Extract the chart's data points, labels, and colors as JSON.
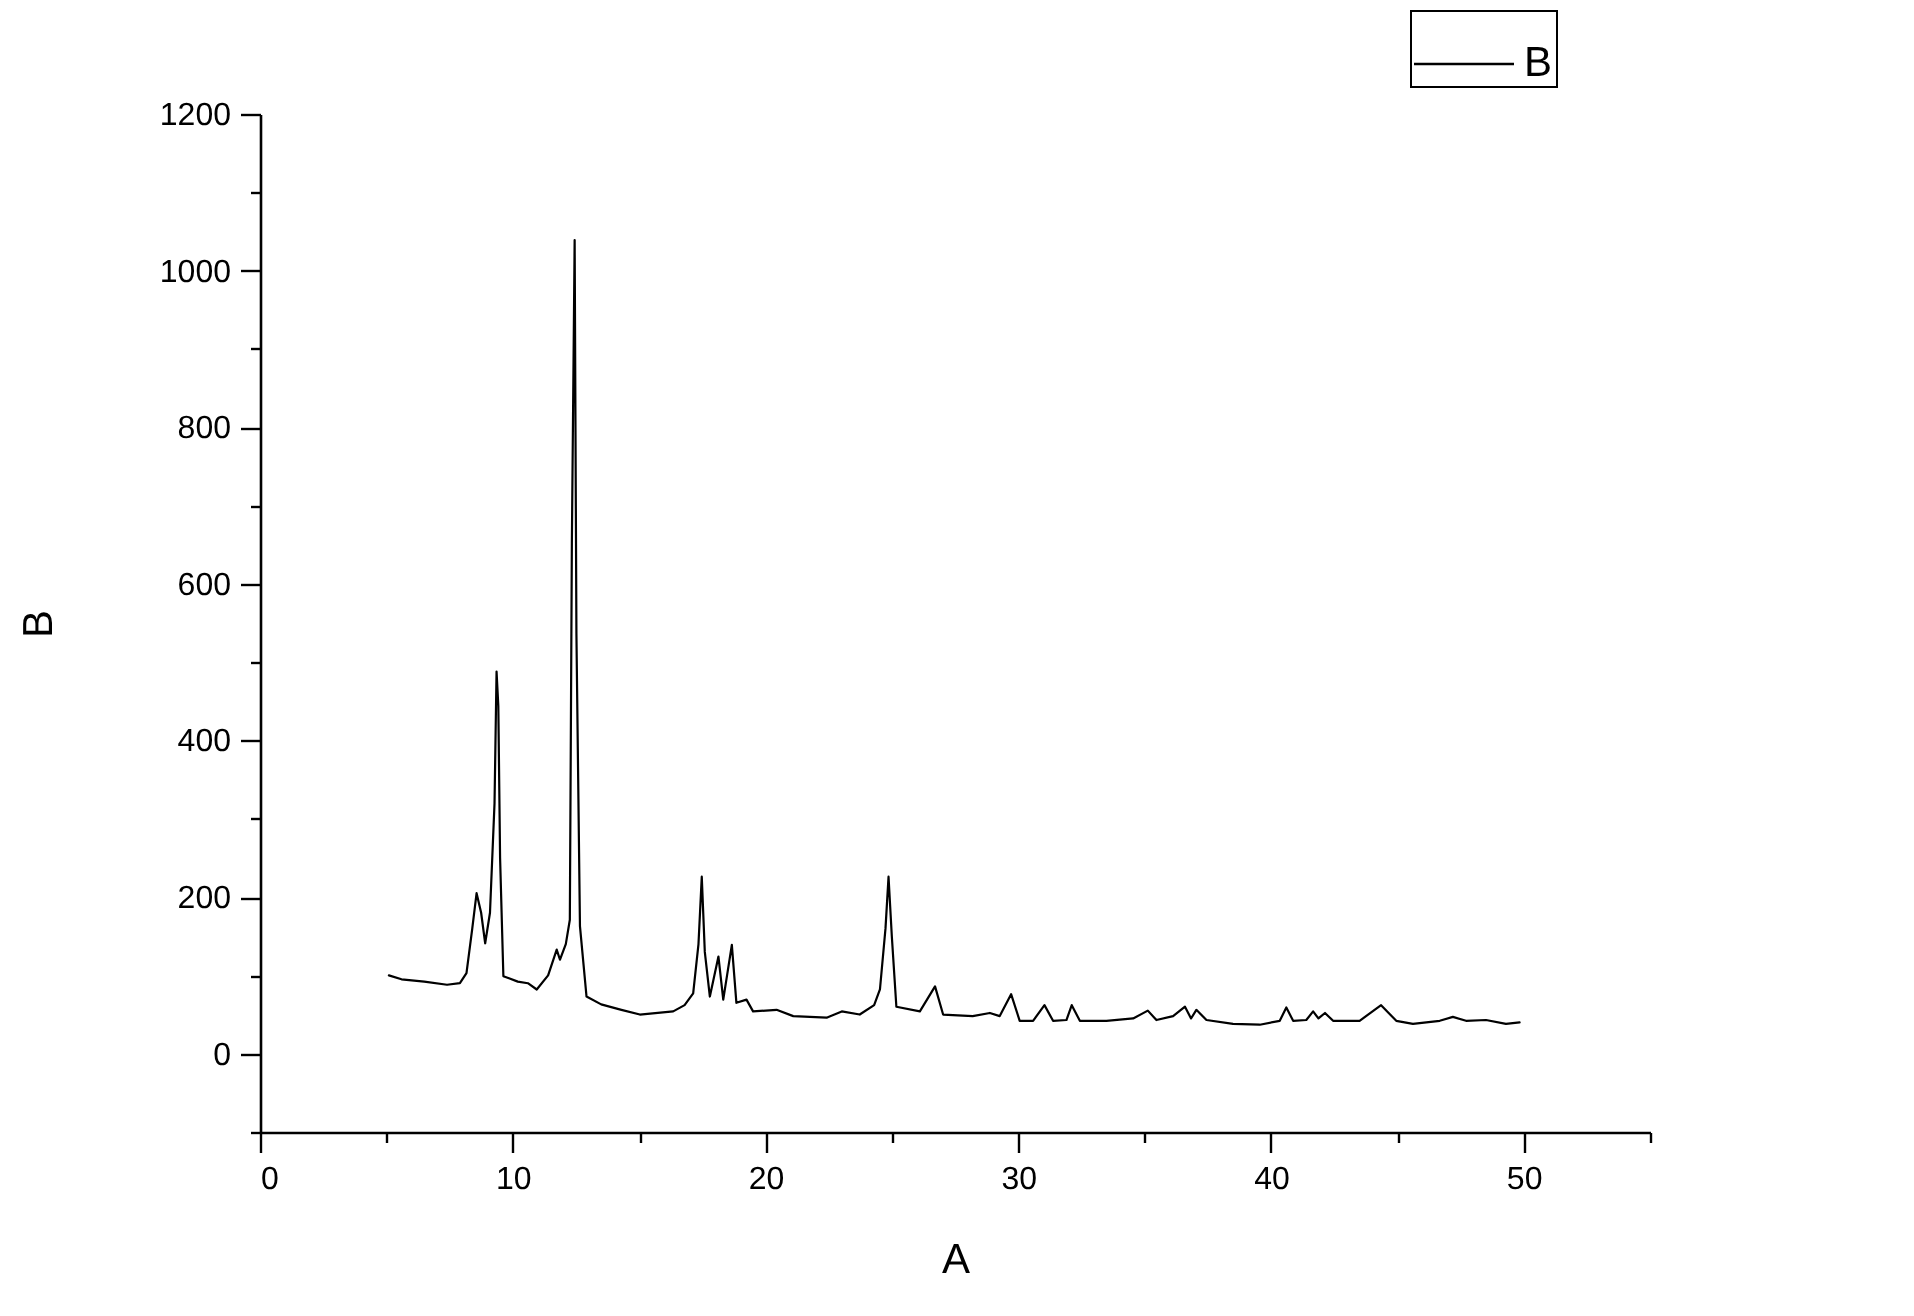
{
  "chart_data": {
    "type": "line",
    "xlabel": "A",
    "ylabel": "B",
    "xlim": [
      0,
      55
    ],
    "xticks": [
      0,
      {
        "value": 5,
        "label": null
      },
      10,
      {
        "value": 15,
        "label": null
      },
      20,
      {
        "value": 25,
        "label": null
      },
      30,
      {
        "value": 35,
        "label": null
      },
      40,
      {
        "value": 45,
        "label": null
      },
      50,
      {
        "value": 55,
        "label": null
      }
    ],
    "ylim": [
      -100,
      1200
    ],
    "yticks": [
      {
        "value": -100,
        "label": null
      },
      0,
      {
        "value": 100,
        "label": null
      },
      200,
      {
        "value": 300,
        "label": null
      },
      400,
      {
        "value": 500,
        "label": null
      },
      600,
      {
        "value": 700,
        "label": null
      },
      800,
      {
        "value": 900,
        "label": null
      },
      1000,
      {
        "value": 1100,
        "label": null
      },
      1200
    ],
    "legend": "top right",
    "line_style": "solid",
    "x": [
      5.1,
      5.6,
      6.5,
      7.4,
      7.91,
      8.17,
      8.4,
      8.57,
      8.75,
      8.91,
      9.1,
      9.28,
      9.36,
      9.43,
      9.5,
      9.63,
      10.2,
      10.6,
      10.95,
      11.4,
      11.74,
      11.87,
      12.1,
      12.26,
      12.34,
      12.45,
      12.52,
      12.66,
      12.92,
      13.5,
      14.3,
      15.03,
      16.35,
      16.8,
      17.14,
      17.35,
      17.48,
      17.6,
      17.8,
      18.14,
      18.33,
      18.67,
      18.85,
      19.25,
      19.51,
      20.44,
      21.1,
      22.42,
      23.02,
      23.73,
      24.3,
      24.53,
      24.75,
      24.87,
      25.0,
      25.18,
      26.11,
      26.71,
      27.03,
      28.2,
      28.88,
      29.27,
      29.72,
      30.06,
      30.59,
      31.04,
      31.38,
      31.91,
      32.12,
      32.44,
      33.49,
      34.55,
      35.13,
      35.47,
      36.13,
      36.6,
      36.84,
      37.05,
      37.45,
      38.5,
      39.56,
      40.35,
      40.61,
      40.88,
      41.4,
      41.67,
      41.88,
      42.14,
      42.46,
      43.51,
      44.36,
      44.96,
      45.62,
      46.68,
      47.2,
      47.72,
      48.51,
      49.3,
      49.84
    ],
    "series": [
      {
        "name": "B",
        "color": "#000000",
        "values": [
          100,
          95,
          92,
          88,
          90,
          103,
          160,
          205,
          180,
          141,
          180,
          320,
          488,
          444,
          250,
          99,
          92,
          90,
          82,
          100,
          133,
          120,
          140,
          171,
          652,
          1039,
          537,
          163,
          73,
          63,
          56,
          50,
          54,
          62,
          77,
          140,
          226,
          130,
          73,
          124,
          69,
          139,
          65,
          69,
          54,
          56,
          48,
          46,
          54,
          50,
          62,
          82,
          160,
          226,
          150,
          60,
          54,
          86,
          50,
          48,
          52,
          48,
          76,
          42,
          42,
          62,
          42,
          43,
          62,
          42,
          42,
          45,
          55,
          43,
          48,
          60,
          45,
          56,
          43,
          38,
          37,
          42,
          59,
          42,
          43,
          54,
          45,
          52,
          42,
          42,
          62,
          42,
          38,
          42,
          47,
          42,
          43,
          38,
          40
        ]
      }
    ]
  }
}
